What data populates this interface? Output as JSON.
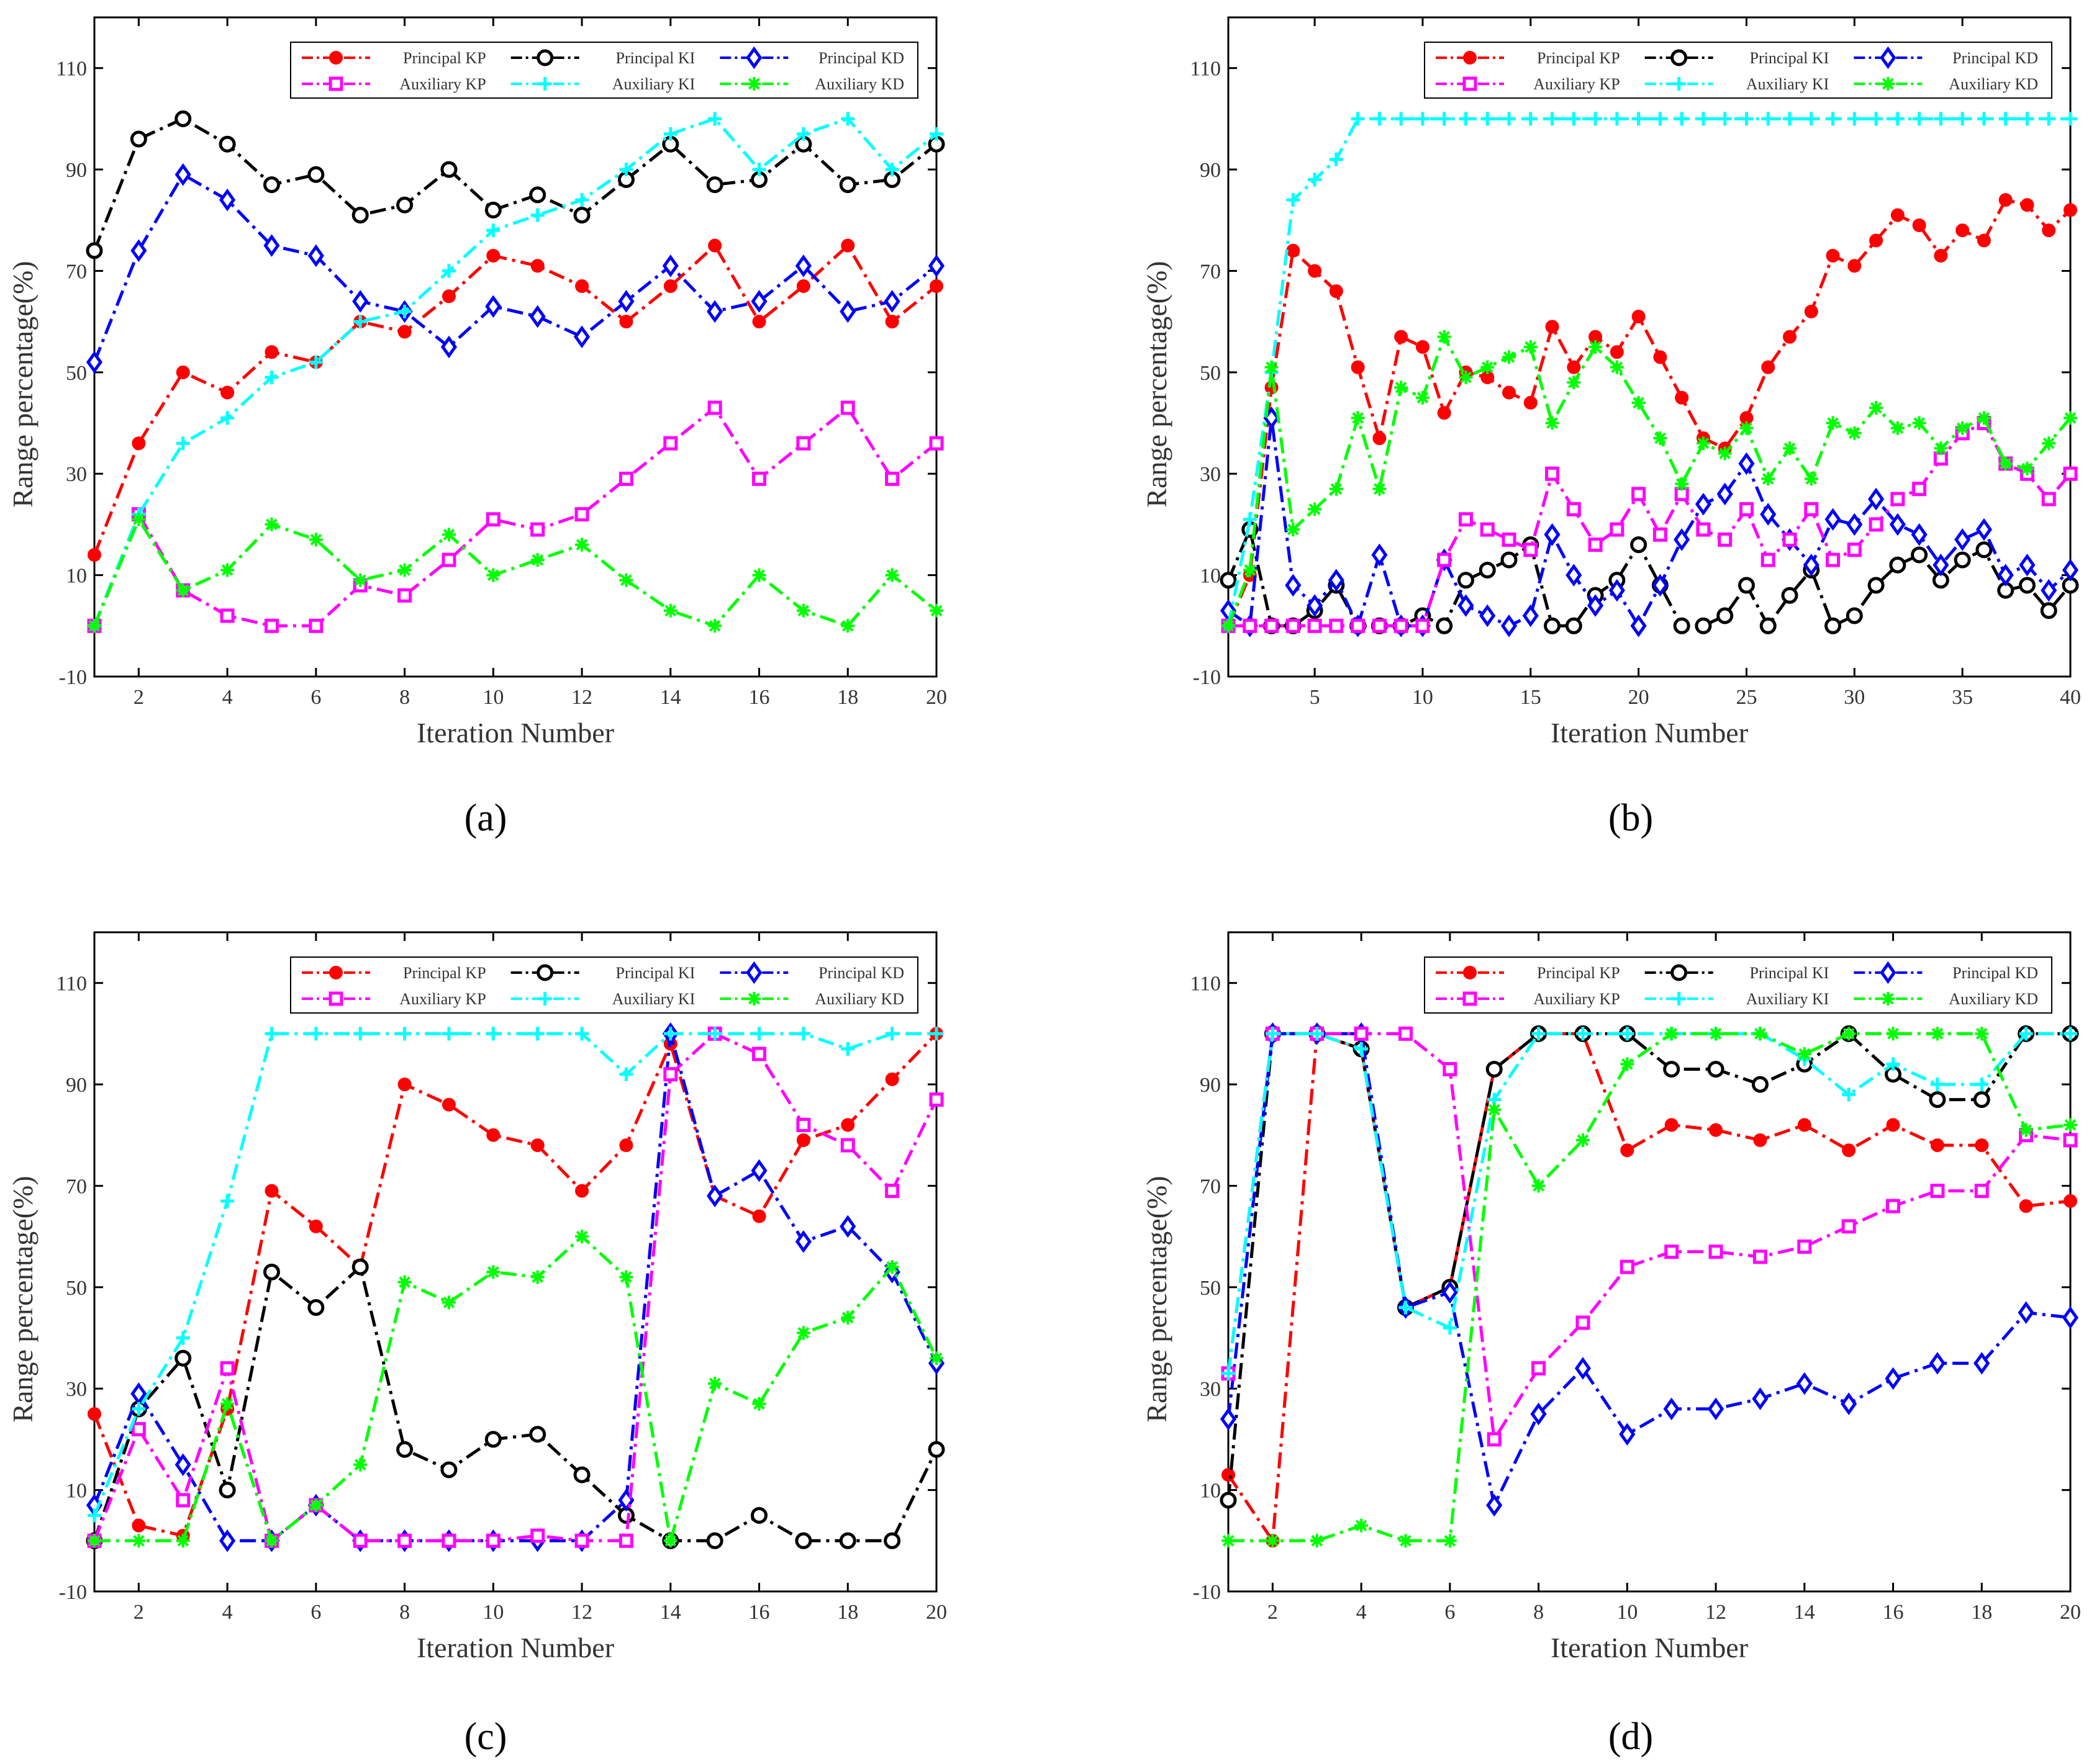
{
  "panel_labels": [
    "(a)",
    "(b)",
    "(c)",
    "(d)"
  ],
  "series_styles": [
    {
      "color": "#ff0000",
      "marker": "dot"
    },
    {
      "color": "#000000",
      "marker": "circle"
    },
    {
      "color": "#0000ff",
      "marker": "diamond"
    },
    {
      "color": "#ff00ff",
      "marker": "square"
    },
    {
      "color": "#00ffff",
      "marker": "plus"
    },
    {
      "color": "#00ff00",
      "marker": "star"
    }
  ],
  "chart_data": [
    {
      "type": "line",
      "xlabel": "Iteration Number",
      "ylabel": "Range percentage(%)",
      "xlim": [
        1,
        20
      ],
      "ylim": [
        -10,
        120
      ],
      "xticks": [
        2,
        4,
        6,
        8,
        10,
        12,
        14,
        16,
        18,
        20
      ],
      "yticks": [
        -10,
        10,
        30,
        50,
        70,
        90,
        110
      ],
      "grid": false,
      "legend": "top-right",
      "x": [
        1,
        2,
        3,
        4,
        5,
        6,
        7,
        8,
        9,
        10,
        11,
        12,
        13,
        14,
        15,
        16,
        17,
        18,
        19,
        20
      ],
      "series": [
        {
          "name": "Principal KP",
          "values": [
            14,
            36,
            50,
            46,
            54,
            52,
            60,
            58,
            65,
            73,
            71,
            67,
            60,
            67,
            75,
            60,
            67,
            75,
            60,
            67
          ]
        },
        {
          "name": "Principal KI",
          "values": [
            74,
            96,
            100,
            95,
            87,
            89,
            81,
            83,
            90,
            82,
            85,
            81,
            88,
            95,
            87,
            88,
            95,
            87,
            88,
            95
          ]
        },
        {
          "name": "Principal KD",
          "values": [
            52,
            74,
            89,
            84,
            75,
            73,
            64,
            62,
            55,
            63,
            61,
            57,
            64,
            71,
            62,
            64,
            71,
            62,
            64,
            71
          ]
        },
        {
          "name": "Auxiliary KP",
          "values": [
            0,
            22,
            7,
            2,
            0,
            0,
            8,
            6,
            13,
            21,
            19,
            22,
            29,
            36,
            43,
            29,
            36,
            43,
            29,
            36
          ]
        },
        {
          "name": "Auxiliary KI",
          "values": [
            0,
            22,
            36,
            41,
            49,
            52,
            60,
            62,
            70,
            78,
            81,
            84,
            90,
            97,
            100,
            90,
            97,
            100,
            90,
            97
          ]
        },
        {
          "name": "Auxiliary KD",
          "values": [
            0,
            21,
            7,
            11,
            20,
            17,
            9,
            11,
            18,
            10,
            13,
            16,
            9,
            3,
            0,
            10,
            3,
            0,
            10,
            3
          ]
        }
      ]
    },
    {
      "type": "line",
      "xlabel": "Iteration Number",
      "ylabel": "Range percentage(%)",
      "xlim": [
        1,
        40
      ],
      "ylim": [
        -10,
        120
      ],
      "xticks": [
        5,
        10,
        15,
        20,
        25,
        30,
        35,
        40
      ],
      "yticks": [
        -10,
        10,
        30,
        50,
        70,
        90,
        110
      ],
      "grid": false,
      "legend": "top-right",
      "x": [
        1,
        2,
        3,
        4,
        5,
        6,
        7,
        8,
        9,
        10,
        11,
        12,
        13,
        14,
        15,
        16,
        17,
        18,
        19,
        20,
        21,
        22,
        23,
        24,
        25,
        26,
        27,
        28,
        29,
        30,
        31,
        32,
        33,
        34,
        35,
        36,
        37,
        38,
        39,
        40
      ],
      "series": [
        {
          "name": "Principal KP",
          "values": [
            0,
            10,
            47,
            74,
            70,
            66,
            51,
            37,
            57,
            55,
            42,
            50,
            49,
            46,
            44,
            59,
            51,
            57,
            54,
            61,
            53,
            45,
            37,
            35,
            41,
            51,
            57,
            62,
            73,
            71,
            76,
            81,
            79,
            73,
            78,
            76,
            84,
            83,
            78,
            82
          ]
        },
        {
          "name": "Principal KI",
          "values": [
            9,
            19,
            0,
            0,
            3,
            8,
            0,
            0,
            0,
            2,
            0,
            9,
            11,
            13,
            16,
            0,
            0,
            6,
            9,
            16,
            8,
            0,
            0,
            2,
            8,
            0,
            6,
            11,
            0,
            2,
            8,
            12,
            14,
            9,
            13,
            15,
            7,
            8,
            3,
            8
          ]
        },
        {
          "name": "Principal KD",
          "values": [
            3,
            0,
            41,
            8,
            4,
            9,
            0,
            14,
            0,
            0,
            13,
            4,
            2,
            0,
            2,
            18,
            10,
            4,
            7,
            0,
            8,
            17,
            24,
            26,
            32,
            22,
            17,
            12,
            21,
            20,
            25,
            20,
            18,
            12,
            17,
            19,
            10,
            12,
            7,
            11
          ]
        },
        {
          "name": "Auxiliary KP",
          "values": [
            0,
            0,
            0,
            0,
            0,
            0,
            0,
            0,
            0,
            0,
            13,
            21,
            19,
            17,
            15,
            30,
            23,
            16,
            19,
            26,
            18,
            26,
            19,
            17,
            23,
            13,
            17,
            23,
            13,
            15,
            20,
            25,
            27,
            33,
            38,
            40,
            32,
            30,
            25,
            30
          ]
        },
        {
          "name": "Auxiliary KI",
          "values": [
            0,
            21,
            50,
            84,
            88,
            92,
            100,
            100,
            100,
            100,
            100,
            100,
            100,
            100,
            100,
            100,
            100,
            100,
            100,
            100,
            100,
            100,
            100,
            100,
            100,
            100,
            100,
            100,
            100,
            100,
            100,
            100,
            100,
            100,
            100,
            100,
            100,
            100,
            100,
            100
          ]
        },
        {
          "name": "Auxiliary KD",
          "values": [
            0,
            11,
            51,
            19,
            23,
            27,
            41,
            27,
            47,
            45,
            57,
            49,
            51,
            53,
            55,
            40,
            48,
            55,
            51,
            44,
            37,
            28,
            36,
            34,
            39,
            29,
            35,
            29,
            40,
            38,
            43,
            39,
            40,
            35,
            39,
            41,
            32,
            31,
            36,
            41
          ]
        }
      ]
    },
    {
      "type": "line",
      "xlabel": "Iteration Number",
      "ylabel": "Range percentage(%)",
      "xlim": [
        1,
        20
      ],
      "ylim": [
        -10,
        120
      ],
      "xticks": [
        2,
        4,
        6,
        8,
        10,
        12,
        14,
        16,
        18,
        20
      ],
      "yticks": [
        -10,
        10,
        30,
        50,
        70,
        90,
        110
      ],
      "grid": false,
      "legend": "top-right",
      "x": [
        1,
        2,
        3,
        4,
        5,
        6,
        7,
        8,
        9,
        10,
        11,
        12,
        13,
        14,
        15,
        16,
        17,
        18,
        19,
        20
      ],
      "series": [
        {
          "name": "Principal KP",
          "values": [
            25,
            3,
            1,
            26,
            69,
            62,
            54,
            90,
            86,
            80,
            78,
            69,
            78,
            98,
            68,
            64,
            79,
            82,
            91,
            100
          ]
        },
        {
          "name": "Principal KI",
          "values": [
            0,
            26,
            36,
            10,
            53,
            46,
            54,
            18,
            14,
            20,
            21,
            13,
            5,
            0,
            0,
            5,
            0,
            0,
            0,
            18
          ]
        },
        {
          "name": "Principal KD",
          "values": [
            7,
            29,
            15,
            0,
            0,
            7,
            0,
            0,
            0,
            0,
            0,
            0,
            8,
            100,
            68,
            73,
            59,
            62,
            53,
            35
          ]
        },
        {
          "name": "Auxiliary KP",
          "values": [
            0,
            22,
            8,
            34,
            0,
            7,
            0,
            0,
            0,
            0,
            1,
            0,
            0,
            92,
            100,
            96,
            82,
            78,
            69,
            87
          ]
        },
        {
          "name": "Auxiliary KI",
          "values": [
            5,
            26,
            40,
            67,
            100,
            100,
            100,
            100,
            100,
            100,
            100,
            100,
            92,
            100,
            100,
            100,
            100,
            97,
            100,
            100
          ]
        },
        {
          "name": "Auxiliary KD",
          "values": [
            0,
            0,
            0,
            27,
            0,
            7,
            15,
            51,
            47,
            53,
            52,
            60,
            52,
            0,
            31,
            27,
            41,
            44,
            54,
            36
          ]
        }
      ]
    },
    {
      "type": "line",
      "xlabel": "Iteration Number",
      "ylabel": "Range percentage(%)",
      "xlim": [
        1,
        20
      ],
      "ylim": [
        -10,
        120
      ],
      "xticks": [
        2,
        4,
        6,
        8,
        10,
        12,
        14,
        16,
        18,
        20
      ],
      "yticks": [
        -10,
        10,
        30,
        50,
        70,
        90,
        110
      ],
      "grid": false,
      "legend": "top-right",
      "x": [
        1,
        2,
        3,
        4,
        5,
        6,
        7,
        8,
        9,
        10,
        11,
        12,
        13,
        14,
        15,
        16,
        17,
        18,
        19,
        20
      ],
      "series": [
        {
          "name": "Principal KP",
          "values": [
            13,
            0,
            100,
            97,
            46,
            50,
            93,
            100,
            100,
            77,
            82,
            81,
            79,
            82,
            77,
            82,
            78,
            78,
            66,
            67
          ]
        },
        {
          "name": "Principal KI",
          "values": [
            8,
            100,
            100,
            97,
            46,
            50,
            93,
            100,
            100,
            100,
            93,
            93,
            90,
            94,
            100,
            92,
            87,
            87,
            100,
            100
          ]
        },
        {
          "name": "Principal KD",
          "values": [
            24,
            100,
            100,
            100,
            46,
            49,
            7,
            25,
            34,
            21,
            26,
            26,
            28,
            31,
            27,
            32,
            35,
            35,
            45,
            44
          ]
        },
        {
          "name": "Auxiliary KP",
          "values": [
            33,
            100,
            100,
            100,
            100,
            93,
            20,
            34,
            43,
            54,
            57,
            57,
            56,
            58,
            62,
            66,
            69,
            69,
            80,
            79
          ]
        },
        {
          "name": "Auxiliary KI",
          "values": [
            33,
            100,
            100,
            97,
            46,
            42,
            87,
            100,
            100,
            100,
            100,
            100,
            100,
            95,
            88,
            94,
            90,
            90,
            100,
            100
          ]
        },
        {
          "name": "Auxiliary KD",
          "values": [
            0,
            0,
            0,
            3,
            0,
            0,
            85,
            70,
            79,
            94,
            100,
            100,
            100,
            96,
            100,
            100,
            100,
            100,
            81,
            82
          ]
        }
      ]
    }
  ]
}
